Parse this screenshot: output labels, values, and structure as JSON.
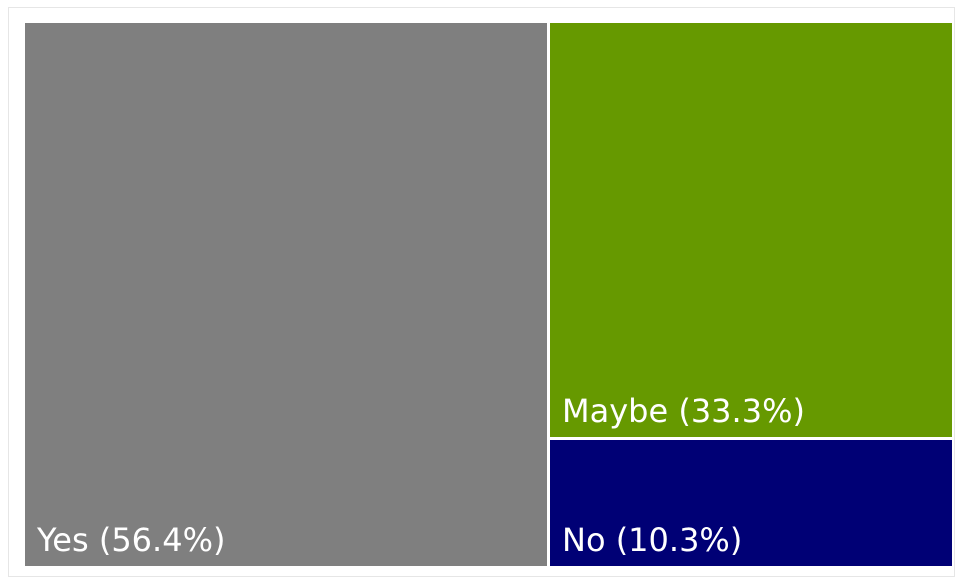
{
  "chart_data": {
    "type": "treemap",
    "title": "",
    "items": [
      {
        "label": "Yes (56.4%)",
        "category": "Yes",
        "percent": 56.4,
        "color": "#7f7f7f"
      },
      {
        "label": "Maybe (33.3%)",
        "category": "Maybe",
        "percent": 33.3,
        "color": "#669900"
      },
      {
        "label": "No (10.3%)",
        "category": "No",
        "percent": 10.3,
        "color": "#000075"
      }
    ]
  }
}
